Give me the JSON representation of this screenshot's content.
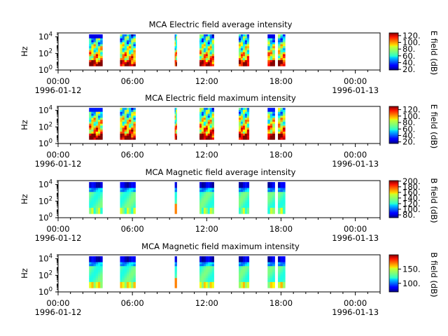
{
  "chart_data": [
    {
      "type": "heatmap",
      "title": "MCA  Electric field average intensity",
      "ylabel": "Hz",
      "y_scale": "log",
      "ylim": [
        1,
        30000
      ],
      "yticks": [
        "10^0",
        "10^2",
        "10^4"
      ],
      "xlim": [
        "1996-01-12 00:00",
        "1996-01-13 02:00"
      ],
      "xtick_labels": [
        "00:00",
        "06:00",
        "12:00",
        "18:00",
        "00:00"
      ],
      "date_labels": [
        "1996-01-12",
        "1996-01-13"
      ],
      "colorbar": {
        "label": "E field (dB)",
        "ticks": [
          "20.",
          "40.",
          "60.",
          "80.",
          "100.",
          "120."
        ],
        "range": [
          18,
          128
        ]
      },
      "data_intervals_utc": [
        [
          "02:30",
          "03:35"
        ],
        [
          "05:00",
          "06:15"
        ],
        [
          "09:25",
          "09:35"
        ],
        [
          "11:25",
          "12:35"
        ],
        [
          "14:35",
          "15:25"
        ],
        [
          "16:55",
          "17:30"
        ],
        [
          "17:45",
          "18:20"
        ]
      ],
      "colormap": "jet"
    },
    {
      "type": "heatmap",
      "title": "MCA  Electric field maximum intensity",
      "ylabel": "Hz",
      "y_scale": "log",
      "ylim": [
        1,
        30000
      ],
      "yticks": [
        "10^0",
        "10^2",
        "10^4"
      ],
      "xlim": [
        "1996-01-12 00:00",
        "1996-01-13 02:00"
      ],
      "xtick_labels": [
        "00:00",
        "06:00",
        "12:00",
        "18:00",
        "00:00"
      ],
      "date_labels": [
        "1996-01-12",
        "1996-01-13"
      ],
      "colorbar": {
        "label": "E field (dB)",
        "ticks": [
          "20.",
          "40.",
          "60.",
          "80.",
          "100.",
          "120."
        ],
        "range": [
          15,
          130
        ]
      },
      "data_intervals_utc": [
        [
          "02:30",
          "03:35"
        ],
        [
          "05:00",
          "06:15"
        ],
        [
          "09:25",
          "09:35"
        ],
        [
          "11:25",
          "12:35"
        ],
        [
          "14:35",
          "15:25"
        ],
        [
          "16:55",
          "17:30"
        ],
        [
          "17:45",
          "18:20"
        ]
      ],
      "colormap": "jet"
    },
    {
      "type": "heatmap",
      "title": "MCA  Magnetic field average intensity",
      "ylabel": "Hz",
      "y_scale": "log",
      "ylim": [
        1,
        30000
      ],
      "yticks": [
        "10^0",
        "10^2",
        "10^4"
      ],
      "xlim": [
        "1996-01-12 00:00",
        "1996-01-13 02:00"
      ],
      "xtick_labels": [
        "00:00",
        "06:00",
        "12:00",
        "18:00",
        "00:00"
      ],
      "date_labels": [
        "1996-01-12",
        "1996-01-13"
      ],
      "colorbar": {
        "label": "B field (dB)",
        "ticks": [
          "80.",
          "100.",
          "120.",
          "140.",
          "160.",
          "180.",
          "200."
        ],
        "range": [
          70,
          202
        ]
      },
      "data_intervals_utc": [
        [
          "02:30",
          "03:35"
        ],
        [
          "05:00",
          "06:15"
        ],
        [
          "09:25",
          "09:35"
        ],
        [
          "11:25",
          "12:35"
        ],
        [
          "14:35",
          "15:25"
        ],
        [
          "16:55",
          "17:30"
        ],
        [
          "17:45",
          "18:20"
        ]
      ],
      "colormap": "jet"
    },
    {
      "type": "heatmap",
      "title": "MCA  Magnetic field maximum intensity",
      "ylabel": "Hz",
      "y_scale": "log",
      "ylim": [
        1,
        30000
      ],
      "yticks": [
        "10^0",
        "10^2",
        "10^4"
      ],
      "xlim": [
        "1996-01-12 00:00",
        "1996-01-13 02:00"
      ],
      "xtick_labels": [
        "00:00",
        "06:00",
        "12:00",
        "18:00",
        "00:00"
      ],
      "date_labels": [
        "1996-01-12",
        "1996-01-13"
      ],
      "colorbar": {
        "label": "B field (dB)",
        "ticks": [
          "100.",
          "150."
        ],
        "range": [
          70,
          200
        ]
      },
      "data_intervals_utc": [
        [
          "02:30",
          "03:35"
        ],
        [
          "05:00",
          "06:15"
        ],
        [
          "09:25",
          "09:35"
        ],
        [
          "11:25",
          "12:35"
        ],
        [
          "14:35",
          "15:25"
        ],
        [
          "16:55",
          "17:30"
        ],
        [
          "17:45",
          "18:20"
        ]
      ],
      "colormap": "jet"
    }
  ]
}
